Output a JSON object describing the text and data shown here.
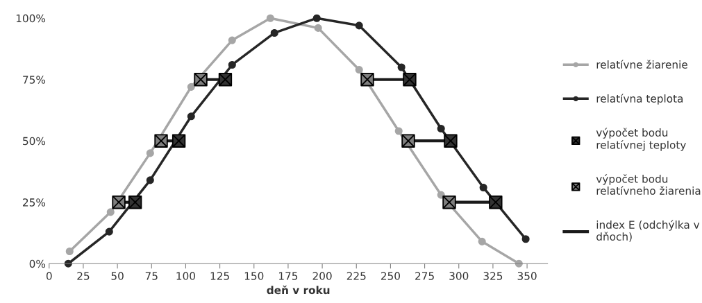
{
  "chart_data": {
    "type": "line",
    "xlabel": "deň v roku",
    "xlim": [
      0,
      365
    ],
    "xticks": [
      0,
      25,
      50,
      75,
      100,
      125,
      150,
      175,
      200,
      225,
      250,
      275,
      300,
      325,
      350
    ],
    "ylim": [
      0,
      100
    ],
    "yticks": [
      {
        "value": 0,
        "label": "0%"
      },
      {
        "value": 25,
        "label": "25%"
      },
      {
        "value": 50,
        "label": "50%"
      },
      {
        "value": 75,
        "label": "75%"
      },
      {
        "value": 100,
        "label": "100%"
      }
    ],
    "grid": false,
    "legend": "right",
    "series": [
      {
        "name": "relatívne žiarenie",
        "color": "#a6a6a6",
        "marker": "circle",
        "x": [
          15,
          45,
          74,
          104,
          134,
          162,
          197,
          227,
          256,
          287,
          317,
          344
        ],
        "values": [
          5,
          21,
          45,
          72,
          91,
          100,
          96,
          79,
          54,
          28,
          9,
          0
        ]
      },
      {
        "name": "relatívna teplota",
        "color": "#262626",
        "marker": "circle",
        "x": [
          14,
          44,
          74,
          104,
          134,
          165,
          196,
          227,
          258,
          287,
          318,
          349
        ],
        "values": [
          0,
          13,
          34,
          60,
          81,
          94,
          100,
          97,
          80,
          55,
          31,
          10
        ]
      },
      {
        "name": "výpočet bodu\nrelatívnej teploty",
        "type": "scatter",
        "color": "#333333",
        "marker": "cross",
        "x": [
          63,
          95,
          129,
          264,
          294,
          327
        ],
        "values": [
          25,
          50,
          75,
          75,
          50,
          25
        ]
      },
      {
        "name": "výpočet bodu\nrelatívneho žiarenia",
        "type": "scatter",
        "color": "#7f7f7f",
        "marker": "cross",
        "x": [
          51,
          82,
          111,
          233,
          263,
          293
        ],
        "values": [
          25,
          50,
          75,
          75,
          50,
          25
        ]
      },
      {
        "name": "index E (odchýlka v\ndňoch)",
        "color": "#1a1a1a",
        "x": [
          51,
          63
        ],
        "values": [
          25,
          25
        ]
      },
      {
        "color": "#1a1a1a",
        "x": [
          82,
          95
        ],
        "values": [
          50,
          50
        ]
      },
      {
        "color": "#1a1a1a",
        "x": [
          111,
          129
        ],
        "values": [
          75,
          75
        ]
      },
      {
        "color": "#1a1a1a",
        "x": [
          233,
          264
        ],
        "values": [
          75,
          75
        ]
      },
      {
        "color": "#1a1a1a",
        "x": [
          263,
          294
        ],
        "values": [
          50,
          50
        ]
      },
      {
        "color": "#1a1a1a",
        "x": [
          293,
          327
        ],
        "values": [
          25,
          25
        ]
      }
    ]
  }
}
